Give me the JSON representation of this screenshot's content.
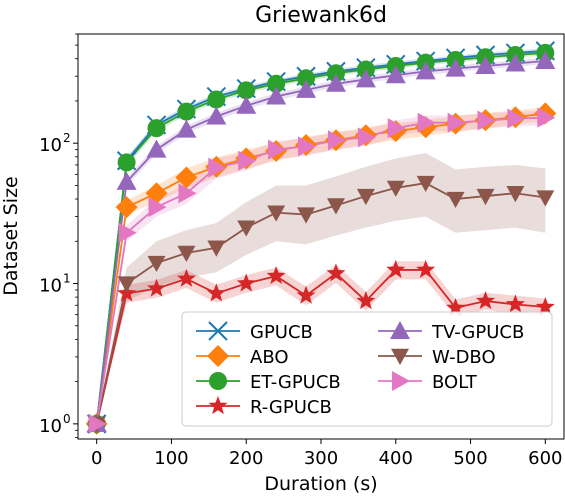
{
  "chart_data": {
    "type": "line",
    "title": "Griewank6d",
    "xlabel": "Duration (s)",
    "ylabel": "Dataset Size",
    "xlim": [
      -25,
      625
    ],
    "ylim": [
      0.78,
      600
    ],
    "yscale": "log",
    "grid": false,
    "legend_position": "lower-right",
    "x_ticks": [
      0,
      100,
      200,
      300,
      400,
      500,
      600
    ],
    "x_tick_labels": [
      "0",
      "100",
      "200",
      "300",
      "400",
      "500",
      "600"
    ],
    "y_ticks": [
      1,
      10,
      100
    ],
    "y_tick_labels": [
      "10",
      "10",
      "10"
    ],
    "y_tick_exponents": [
      "0",
      "1",
      "2"
    ],
    "x": [
      0,
      40,
      80,
      120,
      160,
      200,
      240,
      280,
      320,
      360,
      400,
      440,
      480,
      520,
      560,
      600
    ],
    "series": [
      {
        "name": "GPUCB",
        "color": "#1f77b4",
        "marker": "x",
        "values": [
          1,
          75,
          135,
          175,
          215,
          245,
          275,
          300,
          325,
          345,
          365,
          385,
          405,
          425,
          440,
          455
        ],
        "band_low": [
          1,
          70,
          128,
          166,
          205,
          234,
          263,
          287,
          311,
          330,
          349,
          368,
          388,
          407,
          421,
          436
        ],
        "band_high": [
          1,
          80,
          142,
          184,
          225,
          256,
          287,
          313,
          339,
          360,
          381,
          402,
          422,
          443,
          459,
          474
        ]
      },
      {
        "name": "ABO",
        "color": "#ff7f0e",
        "marker": "diamond",
        "values": [
          1,
          35,
          44,
          57,
          68,
          78,
          88,
          97,
          105,
          114,
          122,
          130,
          138,
          146,
          153,
          163
        ],
        "band_low": [
          1,
          31,
          38,
          48,
          57,
          66,
          75,
          83,
          90,
          98,
          105,
          113,
          120,
          128,
          135,
          145
        ],
        "band_high": [
          1,
          39,
          50,
          66,
          79,
          90,
          101,
          111,
          120,
          130,
          139,
          147,
          156,
          164,
          171,
          181
        ]
      },
      {
        "name": "ET-GPUCB",
        "color": "#2ca02c",
        "marker": "circle",
        "values": [
          1,
          73,
          128,
          168,
          205,
          238,
          265,
          290,
          315,
          335,
          355,
          375,
          392,
          410,
          425,
          440
        ],
        "band_low": [
          1,
          68,
          121,
          159,
          195,
          227,
          253,
          277,
          301,
          320,
          340,
          359,
          375,
          393,
          407,
          422
        ],
        "band_high": [
          1,
          78,
          135,
          177,
          215,
          249,
          277,
          303,
          329,
          350,
          370,
          391,
          409,
          427,
          443,
          458
        ]
      },
      {
        "name": "R-GPUCB",
        "color": "#d62728",
        "marker": "star",
        "values": [
          1,
          8.5,
          9.2,
          10.8,
          8.5,
          10,
          11.3,
          8.2,
          11.8,
          7.5,
          12.5,
          12.5,
          6.7,
          7.5,
          7.1,
          6.8
        ],
        "band_low": [
          1,
          7.3,
          7.9,
          9.3,
          7.3,
          8.6,
          9.7,
          7.0,
          10.1,
          6.4,
          10.7,
          10.7,
          5.8,
          6.5,
          6.1,
          5.9
        ],
        "band_high": [
          1,
          9.8,
          10.6,
          12.5,
          9.8,
          11.5,
          13.0,
          9.5,
          13.6,
          8.7,
          14.4,
          14.4,
          7.7,
          8.6,
          8.2,
          7.8
        ]
      },
      {
        "name": "TV-GPUCB",
        "color": "#9467bd",
        "marker": "triangle-up",
        "values": [
          1,
          53,
          90,
          125,
          155,
          185,
          215,
          240,
          265,
          285,
          305,
          325,
          340,
          355,
          370,
          385
        ],
        "band_low": [
          1,
          49,
          84,
          117,
          145,
          174,
          202,
          226,
          250,
          269,
          288,
          307,
          322,
          336,
          351,
          366
        ],
        "band_high": [
          1,
          57,
          96,
          133,
          165,
          196,
          228,
          254,
          280,
          301,
          322,
          343,
          358,
          374,
          389,
          404
        ]
      },
      {
        "name": "W-DBO",
        "color": "#8c564b",
        "marker": "triangle-down",
        "values": [
          1,
          10,
          14,
          16.5,
          18,
          25,
          32,
          31,
          36,
          42,
          48,
          52,
          40,
          42,
          44,
          41
        ],
        "band_low": [
          1,
          7.5,
          9.5,
          11,
          12,
          16,
          20,
          19,
          22,
          25,
          28,
          30,
          23,
          24,
          25,
          23
        ],
        "band_high": [
          1,
          13,
          20,
          24,
          27,
          38,
          50,
          50,
          58,
          68,
          78,
          85,
          65,
          68,
          70,
          66
        ]
      },
      {
        "name": "BOLT",
        "color": "#e377c2",
        "marker": "triangle-right",
        "values": [
          1,
          23,
          35,
          44,
          67,
          75,
          90,
          95,
          105,
          110,
          128,
          140,
          140,
          145,
          150,
          152
        ],
        "band_low": [
          1,
          20,
          30,
          37,
          56,
          64,
          77,
          81,
          90,
          95,
          111,
          122,
          122,
          127,
          132,
          134
        ],
        "band_high": [
          1,
          26,
          40,
          51,
          78,
          86,
          103,
          109,
          120,
          125,
          145,
          158,
          158,
          163,
          168,
          170
        ]
      }
    ],
    "legend_order": [
      "GPUCB",
      "ABO",
      "ET-GPUCB",
      "R-GPUCB",
      "TV-GPUCB",
      "W-DBO",
      "BOLT"
    ]
  }
}
